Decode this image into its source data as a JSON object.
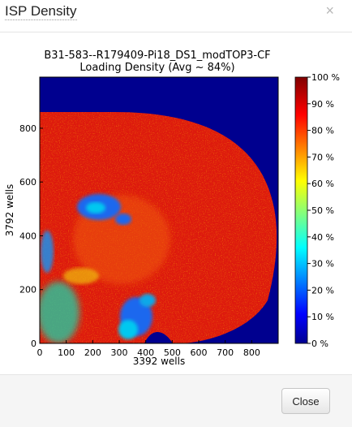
{
  "dialog": {
    "title": "ISP Density",
    "close_icon": "×",
    "close_button_label": "Close"
  },
  "chart_data": {
    "type": "heatmap",
    "title_line1": "B31-583--R179409-Pi18_DS1_modTOP3-CF",
    "title_line2": "Loading Density (Avg ~ 84%)",
    "xlabel": "3392 wells",
    "ylabel": "3792 wells",
    "xlim": [
      0,
      900
    ],
    "ylim": [
      0,
      990
    ],
    "x_ticks": [
      0,
      100,
      200,
      300,
      400,
      500,
      600,
      700,
      800
    ],
    "y_ticks": [
      0,
      200,
      400,
      600,
      800
    ],
    "colorbar_ticks": [
      "0 %",
      "10 %",
      "20 %",
      "30 %",
      "40 %",
      "50 %",
      "60 %",
      "70 %",
      "80 %",
      "90 %",
      "100 %"
    ],
    "colorbar_range": [
      0,
      100
    ],
    "colormap": "jet",
    "average_density_percent": 84,
    "colors": {
      "background": "#00008f",
      "dominant": "#dd1a0d",
      "low_region": "#1e68ee"
    }
  }
}
